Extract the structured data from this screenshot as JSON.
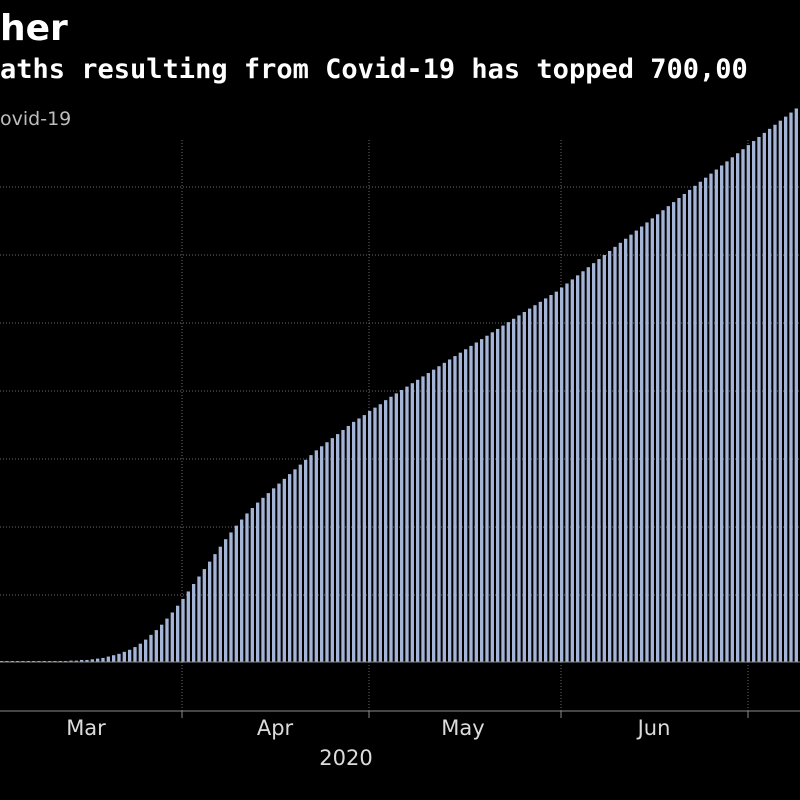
{
  "header": {
    "title": "her",
    "subtitle": "aths resulting from Covid-19 has topped 700,00",
    "series_label": "ovid-19"
  },
  "colors": {
    "background": "#000000",
    "bar": "#a3b4d6",
    "grid": "#6b6b6b",
    "text": "#ffffff"
  },
  "chart_data": {
    "type": "bar",
    "x_axis": {
      "tick_labels": [
        "Mar",
        "Apr",
        "May",
        "Jun"
      ],
      "year_label": "2020"
    },
    "y_axis": {
      "tick_labels_visible": false
    },
    "grid": true,
    "series": [
      {
        "values": [
          0.1,
          0.1,
          0.1,
          0.1,
          0.1,
          0.1,
          0.1,
          0.1,
          0.1,
          0.1,
          0.1,
          0.1,
          0.1,
          0.2,
          0.2,
          0.3,
          0.3,
          0.4,
          0.5,
          0.6,
          0.8,
          1.0,
          1.2,
          1.5,
          1.8,
          2.2,
          2.7,
          3.3,
          4.0,
          4.7,
          5.5,
          6.4,
          7.3,
          8.3,
          9.3,
          10.4,
          11.5,
          12.6,
          13.7,
          14.8,
          15.9,
          17.0,
          18.1,
          19.1,
          20.1,
          21.0,
          21.9,
          22.7,
          23.5,
          24.2,
          24.9,
          25.6,
          26.3,
          27.0,
          27.7,
          28.4,
          29.1,
          29.8,
          30.5,
          31.2,
          31.8,
          32.4,
          33.0,
          33.6,
          34.2,
          34.8,
          35.4,
          35.9,
          36.4,
          37.0,
          37.5,
          38.0,
          38.6,
          39.1,
          39.6,
          40.1,
          40.6,
          41.1,
          41.6,
          42.1,
          42.6,
          43.1,
          43.6,
          44.1,
          44.6,
          45.1,
          45.6,
          46.1,
          46.6,
          47.1,
          47.6,
          48.1,
          48.6,
          49.1,
          49.6,
          50.1,
          50.6,
          51.1,
          51.6,
          52.1,
          52.6,
          53.1,
          53.6,
          54.1,
          54.6,
          55.2,
          55.8,
          56.4,
          57.0,
          57.6,
          58.2,
          58.8,
          59.4,
          60.0,
          60.6,
          61.2,
          61.8,
          62.4,
          63.0,
          63.6,
          64.2,
          64.8,
          65.4,
          66.0,
          66.6,
          67.2,
          67.8,
          68.4,
          69.0,
          69.6,
          70.2,
          70.8,
          71.4,
          72.0,
          72.6,
          73.2,
          73.8,
          74.4,
          75.0,
          75.6,
          76.2,
          76.8,
          77.4,
          78.0,
          78.6,
          79.2,
          79.8,
          80.4,
          81.0,
          81.6
        ]
      }
    ]
  }
}
